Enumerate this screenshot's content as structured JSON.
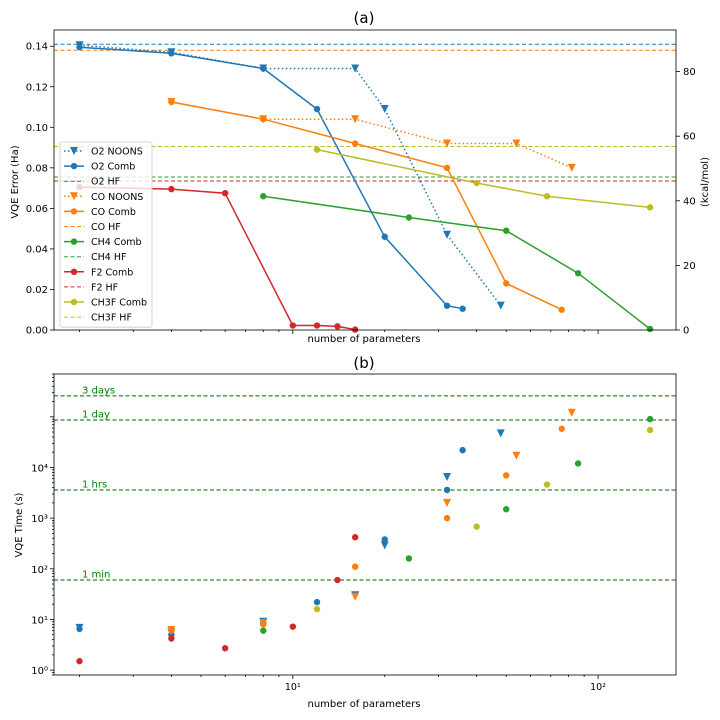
{
  "figure": {
    "width": 720,
    "height": 720
  },
  "chart_data": [
    {
      "type": "line",
      "title": "(a)",
      "xlabel": "number of parameters",
      "ylabel": "VQE Error (Ha)",
      "ylabel_right": "(kcal/mol)",
      "xscale": "log",
      "xlim": [
        1.65,
        180
      ],
      "ylim": [
        0,
        0.148
      ],
      "yticks": [
        0.0,
        0.02,
        0.04,
        0.06,
        0.08,
        0.1,
        0.12,
        0.14
      ],
      "ytick_labels": [
        "0.00",
        "0.02",
        "0.04",
        "0.06",
        "0.08",
        "0.10",
        "0.12",
        "0.14"
      ],
      "right_axis_scale": 627.5,
      "right_ticks": [
        0,
        20,
        40,
        60,
        80
      ],
      "right_tick_labels": [
        "0",
        "20",
        "40",
        "60",
        "80"
      ],
      "legend_position": "center-left",
      "series": [
        {
          "name": "O2 NOONS",
          "style": "dotted",
          "marker": "v",
          "color": "#1f77b4",
          "x": [
            2,
            4,
            8,
            16,
            20,
            32,
            48
          ],
          "y": [
            0.1405,
            0.137,
            0.129,
            0.129,
            0.109,
            0.047,
            0.012
          ]
        },
        {
          "name": "O2 Comb",
          "style": "solid",
          "marker": "o",
          "color": "#1f77b4",
          "x": [
            2,
            4,
            8,
            12,
            20,
            32,
            36
          ],
          "y": [
            0.1395,
            0.1365,
            0.129,
            0.109,
            0.046,
            0.012,
            0.0105
          ]
        },
        {
          "name": "O2 HF",
          "style": "dashed",
          "marker": "",
          "color": "#1f77b4",
          "hline": 0.141
        },
        {
          "name": "CO NOONS",
          "style": "dotted",
          "marker": "v",
          "color": "#ff7f0e",
          "x": [
            4,
            8,
            16,
            32,
            54,
            82
          ],
          "y": [
            0.1125,
            0.104,
            0.104,
            0.092,
            0.092,
            0.08
          ]
        },
        {
          "name": "CO Comb",
          "style": "solid",
          "marker": "o",
          "color": "#ff7f0e",
          "x": [
            4,
            8,
            16,
            32,
            50,
            76
          ],
          "y": [
            0.1125,
            0.104,
            0.092,
            0.08,
            0.023,
            0.01
          ]
        },
        {
          "name": "CO HF",
          "style": "dashed",
          "marker": "",
          "color": "#ff7f0e",
          "hline": 0.138
        },
        {
          "name": "CH4 Comb",
          "style": "solid",
          "marker": "o",
          "color": "#2ca02c",
          "x": [
            8,
            24,
            50,
            86,
            148
          ],
          "y": [
            0.066,
            0.0555,
            0.049,
            0.028,
            0.0005
          ]
        },
        {
          "name": "CH4 HF",
          "style": "dashed",
          "marker": "",
          "color": "#2ca02c",
          "hline": 0.0755
        },
        {
          "name": "F2 Comb",
          "style": "solid",
          "marker": "o",
          "color": "#d62728",
          "x": [
            2,
            4,
            6,
            10,
            12,
            14,
            16
          ],
          "y": [
            0.0705,
            0.0695,
            0.0675,
            0.0022,
            0.0022,
            0.0018,
            0.0002
          ]
        },
        {
          "name": "F2 HF",
          "style": "dashed",
          "marker": "",
          "color": "#d62728",
          "hline": 0.0735
        },
        {
          "name": "CH3F Comb",
          "style": "solid",
          "marker": "o",
          "color": "#bcbd22",
          "x": [
            12,
            40,
            68,
            148
          ],
          "y": [
            0.089,
            0.0725,
            0.066,
            0.0605
          ]
        },
        {
          "name": "CH3F HF",
          "style": "dashed",
          "marker": "",
          "color": "#bcbd22",
          "hline": 0.0905
        }
      ]
    },
    {
      "type": "scatter",
      "title": "(b)",
      "xlabel": "number of parameters",
      "ylabel": "VQE Time (s)",
      "xscale": "log",
      "yscale": "log",
      "xlim": [
        1.65,
        180
      ],
      "ylim": [
        0.8,
        700000
      ],
      "xticks": [
        10,
        100
      ],
      "xtick_labels": [
        "10¹",
        "10²"
      ],
      "yticks": [
        1,
        10,
        100,
        1000,
        10000
      ],
      "ytick_labels": [
        "10⁰",
        "10¹",
        "10²",
        "10³",
        "10⁴"
      ],
      "reference_lines": [
        {
          "label": "1 min",
          "y": 60
        },
        {
          "label": "1 hrs",
          "y": 3600
        },
        {
          "label": "1 day",
          "y": 86400
        },
        {
          "label": "3 days",
          "y": 259200
        }
      ],
      "series": [
        {
          "name": "O2 NOONS",
          "marker": "v",
          "color": "#1f77b4",
          "x": [
            2,
            4,
            8,
            16,
            20,
            32,
            48
          ],
          "y": [
            6.8,
            5.5,
            9,
            30,
            290,
            6500,
            47000
          ]
        },
        {
          "name": "O2 Comb",
          "marker": "o",
          "color": "#1f77b4",
          "x": [
            2,
            4,
            8,
            12,
            20,
            32,
            36
          ],
          "y": [
            6.5,
            5,
            8.5,
            22,
            380,
            3600,
            22000
          ]
        },
        {
          "name": "CO NOONS",
          "marker": "v",
          "color": "#ff7f0e",
          "x": [
            4,
            8,
            16,
            32,
            54,
            82
          ],
          "y": [
            6.2,
            8.5,
            28,
            2000,
            17000,
            120000
          ]
        },
        {
          "name": "CO Comb",
          "marker": "o",
          "color": "#ff7f0e",
          "x": [
            4,
            8,
            16,
            32,
            50,
            76
          ],
          "y": [
            6,
            8,
            110,
            1000,
            7000,
            58000
          ]
        },
        {
          "name": "CH4 Comb",
          "marker": "o",
          "color": "#2ca02c",
          "x": [
            8,
            24,
            50,
            86,
            148
          ],
          "y": [
            6,
            160,
            1500,
            12000,
            90000
          ]
        },
        {
          "name": "F2 Comb",
          "marker": "o",
          "color": "#d62728",
          "x": [
            2,
            4,
            6,
            10,
            14,
            16
          ],
          "y": [
            1.5,
            4.2,
            2.7,
            7.2,
            60,
            420
          ]
        },
        {
          "name": "CH3F Comb",
          "marker": "o",
          "color": "#bcbd22",
          "x": [
            12,
            40,
            68,
            148
          ],
          "y": [
            16,
            680,
            4600,
            55000
          ]
        }
      ]
    }
  ]
}
